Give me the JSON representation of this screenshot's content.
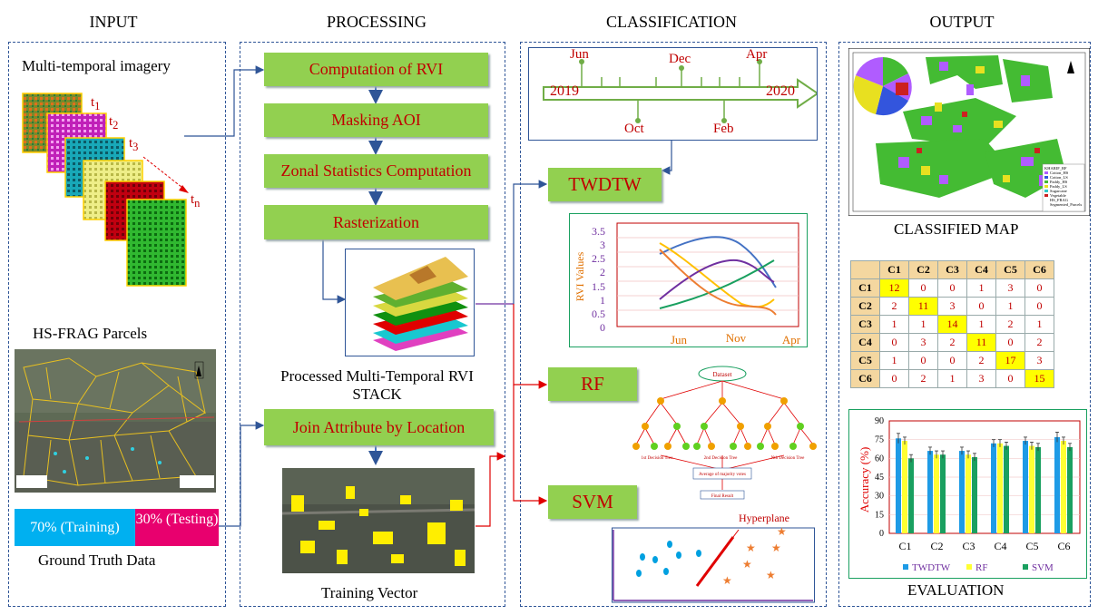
{
  "headings": {
    "input": "INPUT",
    "processing": "PROCESSING",
    "classification": "CLASSIFICATION",
    "output": "OUTPUT"
  },
  "input": {
    "imagery_label": "Multi-temporal imagery",
    "layer_labels": [
      "t",
      "t",
      "t",
      "t"
    ],
    "layer_subs": [
      "1",
      "2",
      "3",
      "n"
    ],
    "parcels_label": "HS-FRAG Parcels",
    "training_label": "70% (Training)",
    "testing_label": "30% (Testing)",
    "ground_truth_label": "Ground Truth Data"
  },
  "processing": {
    "steps": [
      "Computation of RVI",
      "Masking AOI",
      "Zonal Statistics Computation",
      "Rasterization"
    ],
    "stack_label": "Processed Multi-Temporal RVI STACK",
    "join_label": "Join Attribute by Location",
    "training_vector_label": "Training Vector"
  },
  "classification": {
    "timeline": {
      "start_year": "2019",
      "end_year": "2020",
      "top_months": [
        "Jun",
        "Dec",
        "Apr"
      ],
      "bottom_months": [
        "Oct",
        "Feb"
      ]
    },
    "methods": [
      "TWDTW",
      "RF",
      "SVM"
    ],
    "rvi_chart": {
      "ylabel": "RVI Values",
      "yticks": [
        "0",
        "0.5",
        "1",
        "1.5",
        "2",
        "2.5",
        "3",
        "3.5"
      ],
      "xticks": [
        "Jun",
        "Nov",
        "Apr"
      ]
    },
    "rf_labels": {
      "root": "Dataset",
      "tree1": "1st Decision Tree",
      "tree2": "2nd Decision Tree",
      "treeN": "Nth Decision Tree",
      "average": "Average of majority votes",
      "final": "Final Result"
    },
    "svm_label": "Hyperplane"
  },
  "output": {
    "map_label": "CLASSIFIED MAP",
    "map_legend": [
      "KHARIF_RF",
      "Cotton_HS",
      "Cotton_LS",
      "Paddy_HS",
      "Paddy_LS",
      "Sugarcane",
      "Vegetable",
      "HS_FRAG",
      "Segmented_Parcels"
    ],
    "confusion_matrix": {
      "headers": [
        "C1",
        "C2",
        "C3",
        "C4",
        "C5",
        "C6"
      ],
      "rows": [
        [
          "C1",
          "12",
          "0",
          "0",
          "1",
          "3",
          "0"
        ],
        [
          "C2",
          "2",
          "11",
          "3",
          "0",
          "1",
          "0"
        ],
        [
          "C3",
          "1",
          "1",
          "14",
          "1",
          "2",
          "1"
        ],
        [
          "C4",
          "0",
          "3",
          "2",
          "11",
          "0",
          "2"
        ],
        [
          "C5",
          "1",
          "0",
          "0",
          "2",
          "17",
          "3"
        ],
        [
          "C6",
          "0",
          "2",
          "1",
          "3",
          "0",
          "15"
        ]
      ]
    },
    "evaluation_label": "EVALUATION"
  },
  "chart_data": {
    "type": "bar",
    "categories": [
      "C1",
      "C2",
      "C3",
      "C4",
      "C5",
      "C6"
    ],
    "ylabel": "Accuracy (%)",
    "ylim": [
      0,
      90
    ],
    "yticks": [
      "0",
      "15",
      "30",
      "45",
      "60",
      "75",
      "90"
    ],
    "series": [
      {
        "name": "TWDTW",
        "color": "#1e9be6",
        "values": [
          76,
          66,
          66,
          72,
          74,
          77
        ],
        "errors": [
          4,
          3,
          3,
          3,
          3,
          4
        ]
      },
      {
        "name": "RF",
        "color": "#ffff33",
        "values": [
          74,
          63,
          63,
          72,
          70,
          74
        ],
        "errors": [
          3,
          3,
          3,
          3,
          3,
          3
        ]
      },
      {
        "name": "SVM",
        "color": "#1aa060",
        "values": [
          60,
          63,
          61,
          70,
          69,
          69
        ],
        "errors": [
          3,
          3,
          3,
          3,
          3,
          3
        ]
      }
    ]
  }
}
